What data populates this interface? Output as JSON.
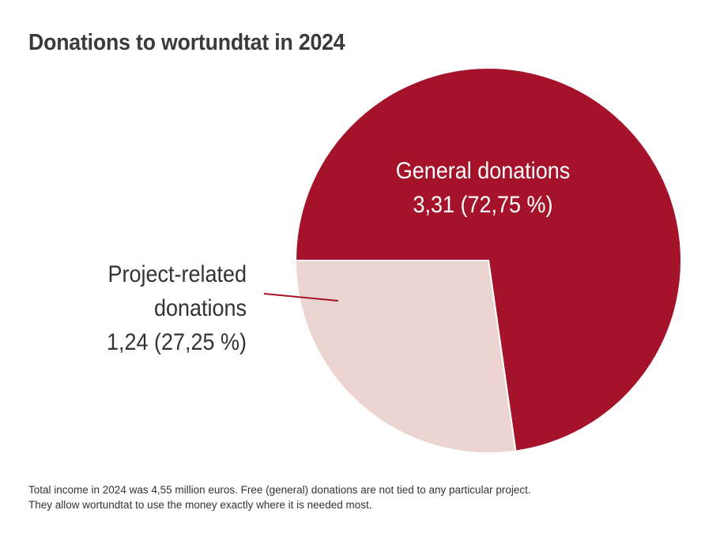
{
  "chart_data": {
    "type": "pie",
    "title": "Donations to wortundtat in 2024",
    "slices": [
      {
        "name": "General donations",
        "value": 3.31,
        "value_label": "3,31",
        "percent_label": "72,75 %",
        "color": "#a5132b",
        "label_color": "#ffffff",
        "label_lines": [
          "General donations",
          "3,31 (72,75 %)"
        ]
      },
      {
        "name": "Project-related donations",
        "value": 1.24,
        "value_label": "1,24",
        "percent_label": "27,25 %",
        "color": "#ecd5d0",
        "label_color": "#333333",
        "label_lines": [
          "Project-related",
          "donations",
          "1,24 (27,25 %)"
        ]
      }
    ],
    "leader_line_color": "#a5132b"
  },
  "footnote": {
    "line1": "Total income in 2024 was 4,55 million euros. Free (general) donations are not tied to any particular project.",
    "line2": "They allow wortundtat to use the money exactly where it is needed most."
  }
}
